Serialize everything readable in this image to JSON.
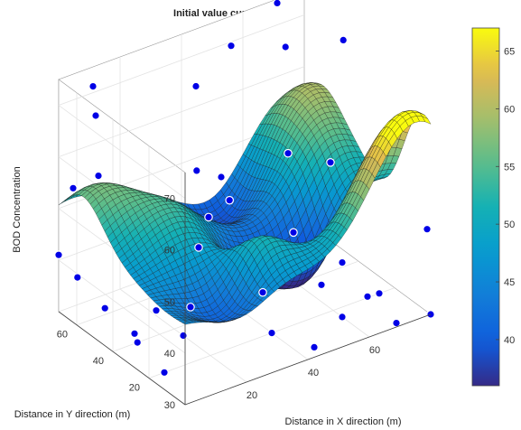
{
  "chart_data": {
    "type": "surface3d",
    "title": "Initial value curve fitting",
    "xlabel": "Distance in X direction (m)",
    "ylabel": "Distance in Y direction (m)",
    "zlabel": "BOD Concentration",
    "xlim": [
      0,
      80
    ],
    "ylim": [
      0,
      70
    ],
    "zlim": [
      30,
      75
    ],
    "x_ticks": [
      20,
      40,
      60
    ],
    "y_ticks": [
      20,
      40,
      60
    ],
    "z_ticks": [
      30,
      40,
      50,
      60,
      70
    ],
    "colorbar": {
      "min": 36,
      "max": 67,
      "ticks": [
        40,
        45,
        50,
        55,
        60,
        65
      ],
      "colormap": "parula"
    },
    "grid": true,
    "surface_peaks": [
      {
        "x": 75,
        "y": 5,
        "amp": 24,
        "w": 14
      },
      {
        "x": 75,
        "y": 60,
        "amp": 14,
        "w": 13
      },
      {
        "x": 4,
        "y": 57,
        "amp": 10,
        "w": 11
      },
      {
        "x": 20,
        "y": 40,
        "amp": 7,
        "w": 11
      },
      {
        "x": 33,
        "y": 16,
        "amp": 8,
        "w": 8
      },
      {
        "x": 58,
        "y": 28,
        "amp": -13,
        "w": 9
      },
      {
        "x": 40,
        "y": 30,
        "amp": -9,
        "w": 9
      },
      {
        "x": 50,
        "y": 62,
        "amp": -9,
        "w": 10
      },
      {
        "x": 18,
        "y": 10,
        "amp": -6,
        "w": 9
      },
      {
        "x": 80,
        "y": 20,
        "amp": -5,
        "w": 8
      },
      {
        "x": 70,
        "y": 40,
        "amp": 4,
        "w": 8
      }
    ],
    "surface_base": 46,
    "points": [
      {
        "x": 70,
        "y": 68,
        "z": 75
      },
      {
        "x": 78,
        "y": 45,
        "z": 72
      },
      {
        "x": 55,
        "y": 68,
        "z": 70
      },
      {
        "x": 68,
        "y": 60,
        "z": 69
      },
      {
        "x": 10,
        "y": 68,
        "z": 72
      },
      {
        "x": 5,
        "y": 58,
        "z": 70
      },
      {
        "x": 0,
        "y": 48,
        "z": 62
      },
      {
        "x": 40,
        "y": 62,
        "z": 67
      },
      {
        "x": 0,
        "y": 62,
        "z": 56
      },
      {
        "x": 32,
        "y": 48,
        "z": 56
      },
      {
        "x": 40,
        "y": 48,
        "z": 53
      },
      {
        "x": 60,
        "y": 45,
        "z": 54
      },
      {
        "x": 38,
        "y": 40,
        "z": 51
      },
      {
        "x": 30,
        "y": 38,
        "z": 50
      },
      {
        "x": 65,
        "y": 30,
        "z": 55
      },
      {
        "x": 25,
        "y": 35,
        "z": 46
      },
      {
        "x": 50,
        "y": 25,
        "z": 46
      },
      {
        "x": 80,
        "y": 2,
        "z": 46
      },
      {
        "x": 0,
        "y": 70,
        "z": 41
      },
      {
        "x": 2,
        "y": 63,
        "z": 38
      },
      {
        "x": 8,
        "y": 58,
        "z": 32
      },
      {
        "x": 20,
        "y": 50,
        "z": 31
      },
      {
        "x": 30,
        "y": 48,
        "z": 30
      },
      {
        "x": 50,
        "y": 42,
        "z": 30
      },
      {
        "x": 65,
        "y": 35,
        "z": 30
      },
      {
        "x": 70,
        "y": 32,
        "z": 34
      },
      {
        "x": 75,
        "y": 20,
        "z": 30
      },
      {
        "x": 70,
        "y": 18,
        "z": 31
      },
      {
        "x": 10,
        "y": 45,
        "z": 30
      },
      {
        "x": 8,
        "y": 40,
        "z": 30
      },
      {
        "x": 20,
        "y": 35,
        "z": 30
      },
      {
        "x": 60,
        "y": 15,
        "z": 30
      },
      {
        "x": 5,
        "y": 20,
        "z": 30
      },
      {
        "x": 40,
        "y": 20,
        "z": 30
      },
      {
        "x": 45,
        "y": 5,
        "z": 30
      },
      {
        "x": 70,
        "y": 2,
        "z": 30
      },
      {
        "x": 80,
        "y": 0,
        "z": 30
      }
    ]
  }
}
